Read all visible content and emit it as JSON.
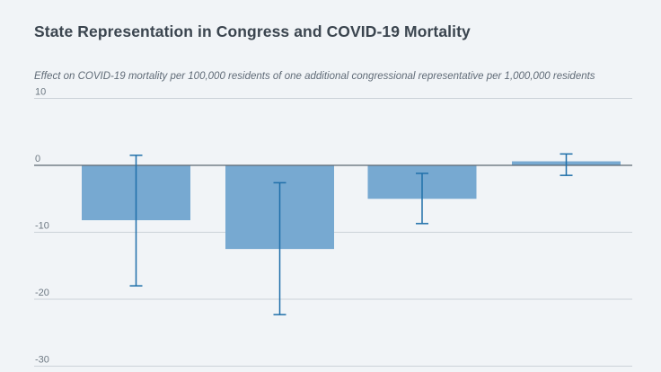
{
  "chart_data": {
    "type": "bar",
    "title": "State Representation in Congress and COVID-19 Mortality",
    "subtitle": "Effect on COVID-19 mortality per 100,000 residents of one additional congressional representative per 1,000,000 residents",
    "values": [
      -8.2,
      -12.5,
      -5.0,
      0.6
    ],
    "error_high": [
      1.5,
      -2.6,
      -1.2,
      1.7
    ],
    "error_low": [
      -18.0,
      -22.3,
      -8.7,
      -1.5
    ],
    "yticks": [
      10,
      0,
      -10,
      -20,
      -30
    ],
    "ytick_labels": [
      "10",
      "0",
      "-10",
      "-20",
      "-30"
    ],
    "ylim": [
      -30,
      10
    ],
    "xlabel": "",
    "ylabel": "",
    "grid": true,
    "legend": false,
    "colors": {
      "background": "#f1f4f7",
      "bar": "#77a9d1",
      "error": "#1f6fa9",
      "grid": "#ccd2d8",
      "zero_line": "#5e6973",
      "title": "#3b454f",
      "subtitle": "#606b77",
      "tick": "#6e7983"
    }
  }
}
